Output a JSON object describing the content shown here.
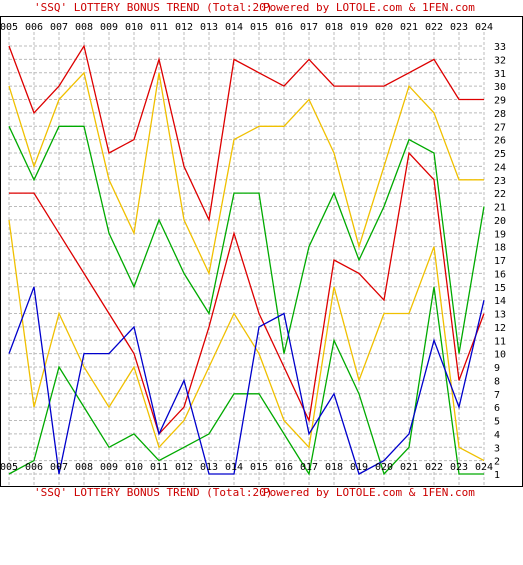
{
  "header": {
    "title_part": "'SSQ' LOTTERY BONUS TREND (Total:20)",
    "powered_part": "Powered by LOTOLE.com & 1FEN.com",
    "title_color": "#cc0000",
    "powered_color": "#cc0000"
  },
  "footer": {
    "title_part": "'SSQ' LOTTERY BONUS TREND (Total:20)",
    "powered_part": "Powered by LOTOLE.com & 1FEN.com",
    "title_color": "#0000cc",
    "powered_color": "#cc0000"
  },
  "chart_data": {
    "type": "line",
    "categories": [
      "005",
      "006",
      "007",
      "008",
      "009",
      "010",
      "011",
      "012",
      "013",
      "014",
      "015",
      "016",
      "017",
      "018",
      "019",
      "020",
      "021",
      "022",
      "023",
      "024"
    ],
    "ylim": [
      1,
      33
    ],
    "y_ticks": [
      1,
      2,
      3,
      4,
      5,
      6,
      7,
      8,
      9,
      10,
      11,
      12,
      13,
      14,
      15,
      16,
      17,
      18,
      19,
      20,
      21,
      22,
      23,
      24,
      25,
      26,
      27,
      28,
      29,
      30,
      31,
      32,
      33
    ],
    "y_tick_labels": [
      "1",
      "2",
      "3",
      "4",
      "5",
      "6",
      "7",
      "8",
      "9",
      "10",
      "11",
      "12",
      "13",
      "14",
      "15",
      "16",
      "17",
      "18",
      "19",
      "20",
      "21",
      "22",
      "23",
      "24",
      "25",
      "26",
      "27",
      "28",
      "29",
      "30",
      "31",
      "32",
      "33"
    ],
    "grid": true,
    "y_axis_position": "right",
    "x_tick_labels_top": true,
    "x_tick_labels_bottom": true,
    "series": [
      {
        "color": "#dd0000",
        "values": [
          33,
          28,
          30,
          33,
          25,
          26,
          32,
          24,
          20,
          32,
          31,
          30,
          32,
          30,
          30,
          30,
          31,
          32,
          29,
          29
        ]
      },
      {
        "color": "#f0c000",
        "values": [
          30,
          24,
          29,
          31,
          23,
          19,
          31,
          20,
          16,
          26,
          27,
          27,
          29,
          25,
          18,
          24,
          30,
          28,
          23,
          23
        ]
      },
      {
        "color": "#00aa00",
        "values": [
          27,
          23,
          27,
          27,
          19,
          15,
          20,
          16,
          13,
          22,
          22,
          10,
          18,
          22,
          17,
          21,
          26,
          25,
          10,
          21
        ]
      },
      {
        "color": "#dd0000",
        "values": [
          22,
          22,
          19,
          16,
          13,
          10,
          4,
          6,
          12,
          19,
          13,
          9,
          5,
          17,
          16,
          14,
          25,
          23,
          8,
          13
        ]
      },
      {
        "color": "#f0c000",
        "values": [
          20,
          6,
          13,
          9,
          6,
          9,
          3,
          5,
          9,
          13,
          10,
          5,
          3,
          15,
          8,
          13,
          13,
          18,
          3,
          2
        ]
      },
      {
        "color": "#00aa00",
        "values": [
          1,
          2,
          9,
          6,
          3,
          4,
          2,
          3,
          4,
          7,
          7,
          4,
          1,
          11,
          7,
          1,
          3,
          15,
          1,
          1
        ]
      },
      {
        "color": "#0000cc",
        "values": [
          10,
          15,
          1,
          10,
          10,
          12,
          4,
          8,
          1,
          1,
          12,
          13,
          4,
          7,
          1,
          2,
          4,
          11,
          6,
          14
        ]
      }
    ]
  }
}
